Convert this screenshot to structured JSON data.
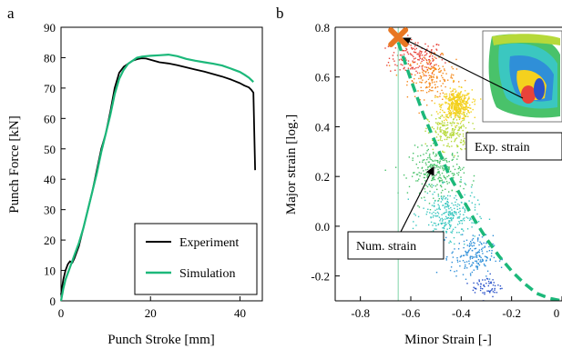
{
  "panels": [
    "a",
    "b"
  ],
  "chart_data": [
    {
      "type": "line",
      "panel": "a",
      "xlabel": "Punch Stroke [mm]",
      "ylabel": "Punch Force [kN]",
      "xlim": [
        0,
        45
      ],
      "ylim": [
        0,
        90
      ],
      "xticks": [
        "0",
        "20",
        "40"
      ],
      "yticks": [
        "0",
        "10",
        "20",
        "30",
        "40",
        "50",
        "60",
        "70",
        "80",
        "90"
      ],
      "grid": false,
      "legend_position": "bottom-right",
      "series": [
        {
          "name": "Experiment",
          "color": "#000000",
          "x": [
            0,
            0.5,
            1,
            1.5,
            2,
            2.5,
            3,
            4,
            5,
            6,
            7,
            8,
            9,
            10,
            11,
            12,
            13,
            14,
            15,
            16,
            17,
            18,
            19,
            20,
            22,
            24,
            26,
            28,
            30,
            32,
            34,
            36,
            38,
            40,
            41,
            42,
            42.5,
            43,
            43.2,
            43.4
          ],
          "y": [
            2,
            7,
            10,
            12,
            13,
            12.5,
            14,
            18,
            24,
            30,
            36,
            43,
            50,
            55,
            62,
            70,
            75,
            77,
            78,
            79,
            79.5,
            79.8,
            79.7,
            79.3,
            78.5,
            78.1,
            77.5,
            76.8,
            76.1,
            75.4,
            74.6,
            73.8,
            72.8,
            71.6,
            70.8,
            70.2,
            69.5,
            68.5,
            55,
            43
          ]
        },
        {
          "name": "Simulation",
          "color": "#1cb87a",
          "x": [
            0,
            0.5,
            1,
            2,
            3,
            4,
            5,
            6,
            7,
            8,
            9,
            10,
            11,
            12,
            13,
            14,
            15,
            16,
            17,
            18,
            19,
            20,
            22,
            24,
            26,
            28,
            30,
            32,
            34,
            36,
            38,
            40,
            41,
            42,
            43
          ],
          "y": [
            0,
            4,
            7,
            11,
            15,
            19,
            24,
            30,
            36,
            42,
            49,
            55,
            61,
            68,
            73,
            76,
            78,
            79,
            80,
            80.3,
            80.5,
            80.6,
            80.8,
            81,
            80.5,
            79.6,
            79,
            78.5,
            78,
            77.4,
            76.4,
            75.3,
            74.4,
            73.4,
            72
          ]
        }
      ]
    },
    {
      "type": "scatter",
      "panel": "b",
      "xlabel": "Minor Strain [-]",
      "ylabel": "Major strain [log.]",
      "xlim": [
        -0.9,
        0
      ],
      "ylim": [
        -0.3,
        0.8
      ],
      "xticks": [
        "-0.8",
        "-0.6",
        "-0.4",
        "-0.2",
        "0"
      ],
      "yticks": [
        "-0.2",
        "0.0",
        "0.2",
        "0.4",
        "0.6",
        "0.8"
      ],
      "grid": false,
      "vertical_line_x": -0.65,
      "fld_curve": {
        "color": "#1cb87a",
        "x": [
          -0.65,
          -0.6,
          -0.55,
          -0.5,
          -0.45,
          -0.4,
          -0.35,
          -0.3,
          -0.25,
          -0.2,
          -0.15,
          -0.1,
          -0.05,
          0
        ],
        "y": [
          0.74,
          0.59,
          0.45,
          0.33,
          0.21,
          0.12,
          0.03,
          -0.05,
          -0.12,
          -0.18,
          -0.23,
          -0.27,
          -0.29,
          -0.3
        ]
      },
      "experimental_point": {
        "x": -0.65,
        "y": 0.76,
        "color": "#e87722"
      },
      "point_clusters": [
        {
          "color": "#e8443a",
          "cx": -0.58,
          "cy": 0.68,
          "sx": 0.09,
          "sy": 0.06,
          "count": 160
        },
        {
          "color": "#f58a1f",
          "cx": -0.52,
          "cy": 0.6,
          "sx": 0.08,
          "sy": 0.07,
          "count": 180
        },
        {
          "color": "#f4d11e",
          "cx": -0.42,
          "cy": 0.49,
          "sx": 0.05,
          "sy": 0.05,
          "count": 420
        },
        {
          "color": "#b6d93a",
          "cx": -0.45,
          "cy": 0.38,
          "sx": 0.07,
          "sy": 0.06,
          "count": 200
        },
        {
          "color": "#49c26a",
          "cx": -0.5,
          "cy": 0.22,
          "sx": 0.09,
          "sy": 0.08,
          "count": 260
        },
        {
          "color": "#3bc7c0",
          "cx": -0.45,
          "cy": 0.05,
          "sx": 0.09,
          "sy": 0.08,
          "count": 260
        },
        {
          "color": "#2f8fd8",
          "cx": -0.36,
          "cy": -0.12,
          "sx": 0.07,
          "sy": 0.07,
          "count": 170
        },
        {
          "color": "#2a52c9",
          "cx": -0.3,
          "cy": -0.24,
          "sx": 0.05,
          "sy": 0.04,
          "count": 60
        }
      ],
      "annotations": [
        {
          "text": "Exp. strain",
          "target": "experimental_point"
        },
        {
          "text": "Num. strain",
          "target": "fld_curve"
        }
      ],
      "inset": {
        "description_icon": "strain-contour-inset-icon",
        "colors": [
          "#2a52c9",
          "#3bc7c0",
          "#49c26a",
          "#f4d11e",
          "#e8443a"
        ]
      }
    }
  ]
}
